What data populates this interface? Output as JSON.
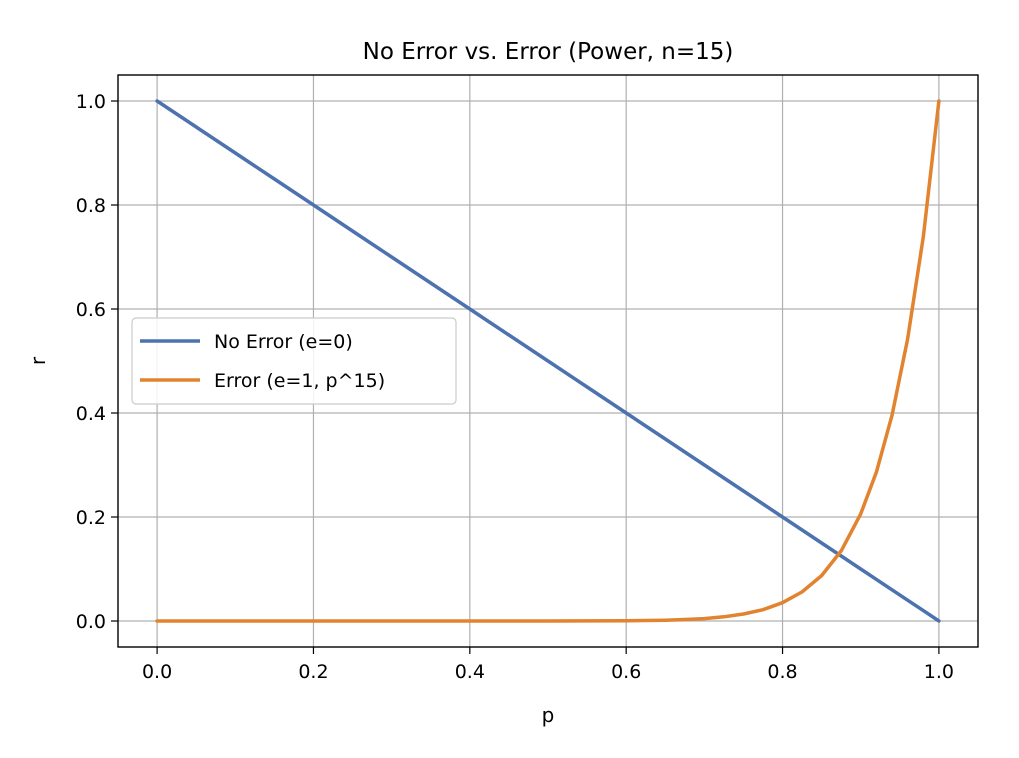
{
  "chart_data": {
    "type": "line",
    "title": "No Error vs. Error (Power, n=15)",
    "xlabel": "p",
    "ylabel": "r",
    "xlim": [
      -0.05,
      1.05
    ],
    "ylim": [
      -0.05,
      1.05
    ],
    "xticks": [
      0.0,
      0.2,
      0.4,
      0.6,
      0.8,
      1.0
    ],
    "xtick_labels": [
      "0.0",
      "0.2",
      "0.4",
      "0.6",
      "0.8",
      "1.0"
    ],
    "yticks": [
      0.0,
      0.2,
      0.4,
      0.6,
      0.8,
      1.0
    ],
    "ytick_labels": [
      "0.0",
      "0.2",
      "0.4",
      "0.6",
      "0.8",
      "1.0"
    ],
    "grid": true,
    "legend_position": "center-left",
    "x": [
      0.0,
      0.05,
      0.1,
      0.15,
      0.2,
      0.25,
      0.3,
      0.35,
      0.4,
      0.45,
      0.5,
      0.55,
      0.6,
      0.625,
      0.65,
      0.675,
      0.7,
      0.725,
      0.75,
      0.775,
      0.8,
      0.825,
      0.85,
      0.875,
      0.9,
      0.92,
      0.94,
      0.96,
      0.98,
      1.0
    ],
    "series": [
      {
        "name": "No Error (e=0)",
        "color": "#4c72b0",
        "values": [
          1.0,
          0.95,
          0.9,
          0.85,
          0.8,
          0.75,
          0.7,
          0.65,
          0.6,
          0.55,
          0.5,
          0.45,
          0.4,
          0.375,
          0.35,
          0.325,
          0.3,
          0.275,
          0.25,
          0.225,
          0.2,
          0.175,
          0.15,
          0.125,
          0.1,
          0.08,
          0.06,
          0.04,
          0.02,
          0.0
        ]
      },
      {
        "name": "Error (e=1, p^15)",
        "color": "#e1832f",
        "values": [
          0.0,
          0.0,
          0.0,
          0.0,
          0.0,
          0.0,
          0.0,
          0.0,
          0.0,
          0.0,
          3e-05,
          0.00013,
          0.0005,
          0.0009,
          0.0016,
          0.0028,
          0.0047,
          0.0081,
          0.0134,
          0.0218,
          0.0352,
          0.0559,
          0.0874,
          0.1349,
          0.2059,
          0.2863,
          0.3953,
          0.5421,
          0.7386,
          1.0
        ]
      }
    ]
  }
}
